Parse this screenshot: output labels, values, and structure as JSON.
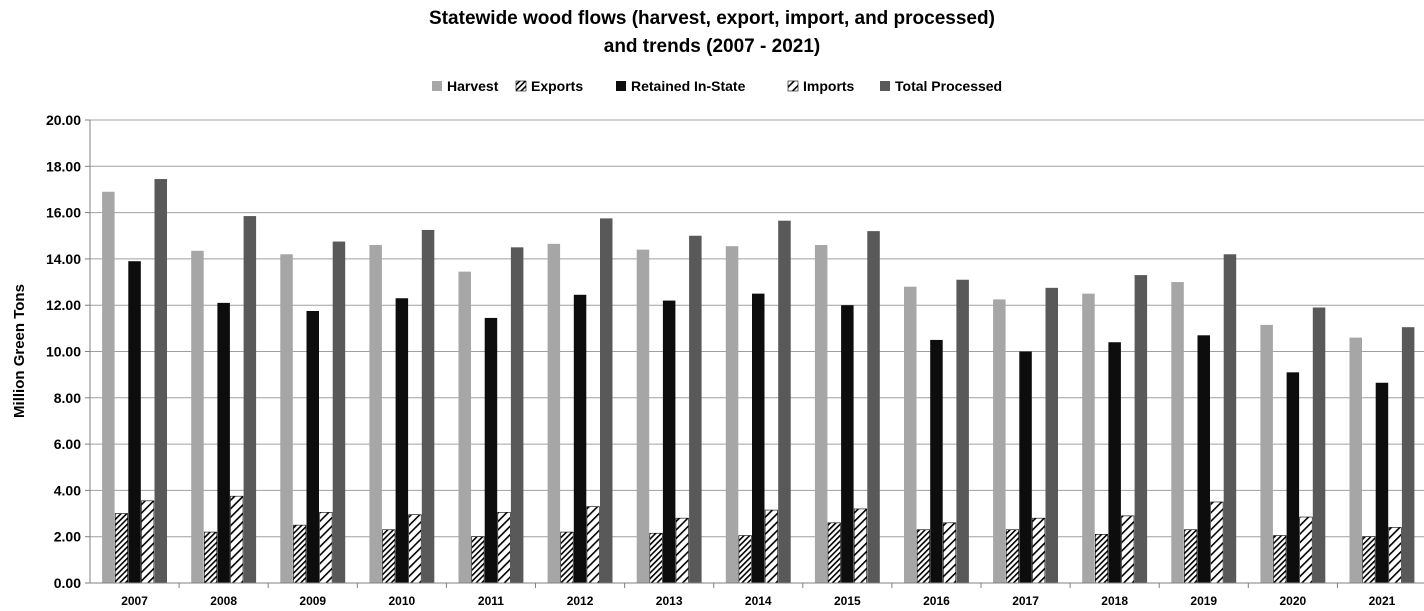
{
  "chart_data": {
    "type": "bar",
    "title": "Statewide wood flows (harvest, export, import, and processed)",
    "subtitle": "and trends (2007 - 2021)",
    "xlabel": "",
    "ylabel": "Million Green Tons",
    "ylim": [
      0,
      20
    ],
    "yticks": [
      "0.00",
      "2.00",
      "4.00",
      "6.00",
      "8.00",
      "10.00",
      "12.00",
      "14.00",
      "16.00",
      "18.00",
      "20.00"
    ],
    "grid": true,
    "legend_position": "top",
    "categories": [
      "2007",
      "2008",
      "2009",
      "2010",
      "2011",
      "2012",
      "2013",
      "2014",
      "2015",
      "2016",
      "2017",
      "2018",
      "2019",
      "2020",
      "2021"
    ],
    "series": [
      {
        "name": "Harvest",
        "fill": "#a6a6a6",
        "pattern": "solid",
        "values": [
          16.9,
          14.35,
          14.2,
          14.6,
          13.45,
          14.65,
          14.4,
          14.55,
          14.6,
          12.8,
          12.25,
          12.5,
          13.0,
          11.15,
          10.6
        ]
      },
      {
        "name": "Exports",
        "fill": "#000000",
        "pattern": "dense-diagonal",
        "values": [
          3.0,
          2.2,
          2.5,
          2.3,
          2.0,
          2.2,
          2.15,
          2.05,
          2.6,
          2.3,
          2.3,
          2.1,
          2.3,
          2.05,
          2.0
        ]
      },
      {
        "name": "Retained In-State",
        "fill": "#0d0d0d",
        "pattern": "solid",
        "values": [
          13.9,
          12.1,
          11.75,
          12.3,
          11.45,
          12.45,
          12.2,
          12.5,
          12.0,
          10.5,
          10.0,
          10.4,
          10.7,
          9.1,
          8.65
        ]
      },
      {
        "name": "Imports",
        "fill": "#000000",
        "pattern": "wide-diagonal",
        "values": [
          3.55,
          3.75,
          3.05,
          2.95,
          3.05,
          3.3,
          2.8,
          3.15,
          3.2,
          2.6,
          2.8,
          2.9,
          3.5,
          2.85,
          2.4
        ]
      },
      {
        "name": "Total Processed",
        "fill": "#595959",
        "pattern": "solid",
        "values": [
          17.45,
          15.85,
          14.75,
          15.25,
          14.5,
          15.75,
          15.0,
          15.65,
          15.2,
          13.1,
          12.75,
          13.3,
          14.2,
          11.9,
          11.05
        ]
      }
    ]
  }
}
